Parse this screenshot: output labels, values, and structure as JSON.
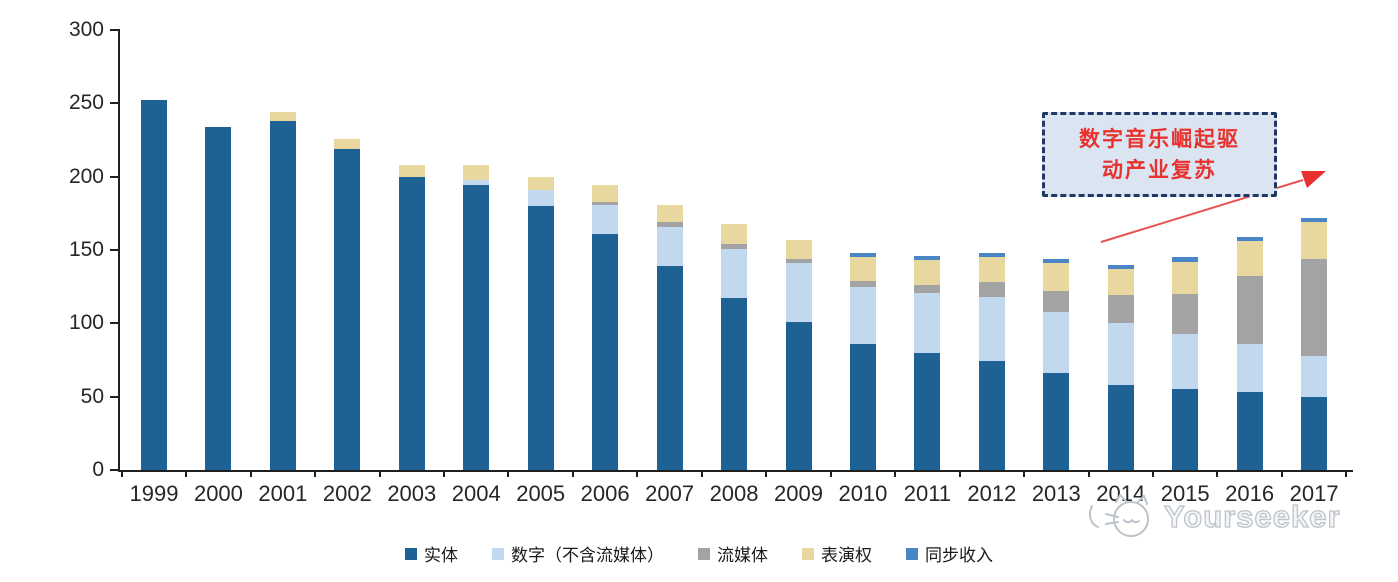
{
  "chart_data": {
    "type": "bar",
    "stacked": true,
    "title": "",
    "xlabel": "",
    "ylabel": "",
    "categories": [
      "1999",
      "2000",
      "2001",
      "2002",
      "2003",
      "2004",
      "2005",
      "2006",
      "2007",
      "2008",
      "2009",
      "2010",
      "2011",
      "2012",
      "2013",
      "2014",
      "2015",
      "2016",
      "2017"
    ],
    "series": [
      {
        "name": "实体",
        "color": "#1e6194",
        "values": [
          252,
          234,
          238,
          219,
          200,
          194,
          180,
          161,
          139,
          117,
          101,
          86,
          80,
          74,
          66,
          58,
          55,
          53,
          50
        ]
      },
      {
        "name": "数字（不含流媒体）",
        "color": "#c2d8ee",
        "values": [
          0,
          0,
          0,
          0,
          0,
          4,
          11,
          20,
          27,
          34,
          40,
          39,
          41,
          44,
          42,
          42,
          38,
          33,
          28
        ]
      },
      {
        "name": "流媒体",
        "color": "#a3a3a3",
        "values": [
          0,
          0,
          0,
          0,
          0,
          0,
          0,
          2,
          3,
          3,
          3,
          4,
          5,
          10,
          14,
          19,
          27,
          46,
          66
        ]
      },
      {
        "name": "表演权",
        "color": "#e8d79e",
        "values": [
          0,
          0,
          6,
          7,
          8,
          10,
          9,
          11,
          12,
          14,
          13,
          16,
          17,
          17,
          19,
          18,
          22,
          24,
          25
        ]
      },
      {
        "name": "同步收入",
        "color": "#4a86c5",
        "values": [
          0,
          0,
          0,
          0,
          0,
          0,
          0,
          0,
          0,
          0,
          0,
          3,
          3,
          3,
          3,
          3,
          3,
          3,
          3
        ]
      }
    ],
    "ylim": [
      0,
      300
    ],
    "yticks": [
      0,
      50,
      100,
      150,
      200,
      250,
      300
    ],
    "grid": false,
    "legend_position": "bottom"
  },
  "annotation": {
    "line1": "数字音乐崛起驱",
    "line2": "动产业复苏"
  },
  "watermark": {
    "text": "Yourseeker"
  }
}
